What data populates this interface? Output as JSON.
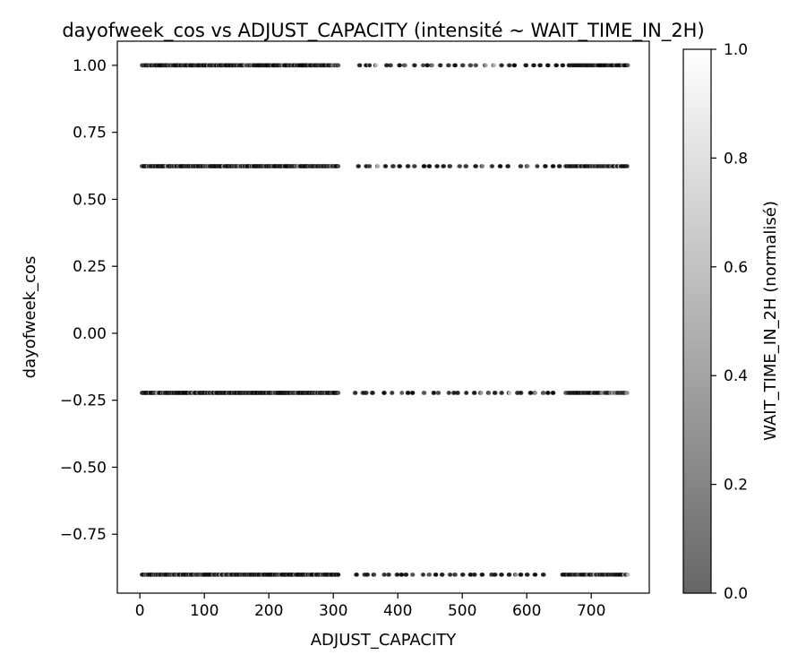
{
  "chart_data": {
    "type": "scatter",
    "title": "dayofweek_cos vs ADJUST_CAPACITY (intensité ~ WAIT_TIME_IN_2H)",
    "xlabel": "ADJUST_CAPACITY",
    "ylabel": "dayofweek_cos",
    "xlim": [
      -35,
      790
    ],
    "ylim": [
      -0.97,
      1.09
    ],
    "grid": false,
    "x_ticks": [
      0,
      100,
      200,
      300,
      400,
      500,
      600,
      700
    ],
    "x_tick_labels": [
      "0",
      "100",
      "200",
      "300",
      "400",
      "500",
      "600",
      "700"
    ],
    "y_ticks": [
      1.0,
      0.75,
      0.5,
      0.25,
      0.0,
      -0.25,
      -0.5,
      -0.75
    ],
    "y_tick_labels": [
      "1.00",
      "0.75",
      "0.50",
      "0.25",
      "0.00",
      "−0.25",
      "−0.50",
      "−0.75"
    ],
    "levels": [
      1.0,
      0.6235,
      -0.2225,
      -0.901
    ],
    "dense_range": [
      3,
      308
    ],
    "x_max": 757,
    "sparse_x": [
      [
        340,
        350,
        355,
        365,
        382,
        388,
        402,
        410,
        425,
        438,
        445,
        452,
        465,
        478,
        488,
        500,
        512,
        520,
        535,
        548,
        560,
        572,
        580,
        598,
        610,
        620,
        632,
        645,
        655
      ],
      [
        338,
        350,
        355,
        368,
        380,
        392,
        402,
        415,
        425,
        440,
        448,
        460,
        470,
        480,
        495,
        505,
        520,
        530,
        545,
        558,
        570,
        590,
        600,
        615,
        628,
        640,
        650
      ],
      [
        333,
        345,
        350,
        360,
        378,
        390,
        405,
        415,
        422,
        440,
        455,
        462,
        478,
        486,
        492,
        505,
        518,
        528,
        540,
        550,
        560,
        572,
        585,
        590,
        605,
        612,
        625,
        632,
        640
      ],
      [
        335,
        348,
        352,
        362,
        378,
        385,
        398,
        405,
        412,
        422,
        438,
        448,
        458,
        468,
        480,
        488,
        500,
        512,
        518,
        530,
        545,
        550,
        560,
        572,
        582,
        590,
        600,
        612,
        625
      ]
    ],
    "dense_tail_start": [
      665,
      660,
      660,
      655
    ],
    "colorbar": {
      "label": "WAIT_TIME_IN_2H (normalisé)",
      "min": 0.0,
      "max": 1.0,
      "ticks": [
        0.0,
        0.2,
        0.4,
        0.6,
        0.8,
        1.0
      ],
      "tick_labels": [
        "0.0",
        "0.2",
        "0.4",
        "0.6",
        "0.8",
        "1.0"
      ],
      "colormap": "gray",
      "alpha": 0.6,
      "color_low": "#000000",
      "color_high": "#ffffff"
    }
  }
}
